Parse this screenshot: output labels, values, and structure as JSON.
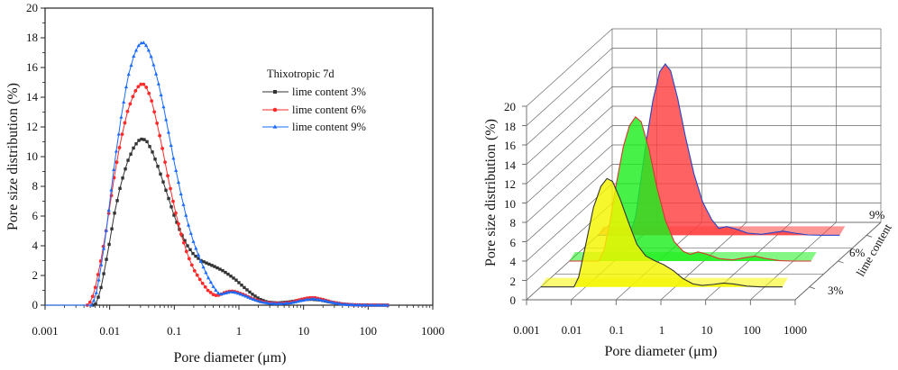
{
  "chart_data": [
    {
      "type": "line",
      "x_scale": "log",
      "xlabel": "Pore diameter (μm)",
      "ylabel": "Pore size distribution (%)",
      "xlim": [
        0.001,
        1000
      ],
      "ylim": [
        0,
        20
      ],
      "x_tick_labels": [
        "0.001",
        "0.01",
        "0.1",
        "1",
        "10",
        "100",
        "1000"
      ],
      "y_tick_labels": [
        "0",
        "2",
        "4",
        "6",
        "8",
        "10",
        "12",
        "14",
        "16",
        "18",
        "20"
      ],
      "legend_title": "Thixotropic 7d",
      "legend_position": "upper-center",
      "series": [
        {
          "name": "lime content 3%",
          "color": "#333333",
          "marker": "square",
          "points": [
            [
              0.001,
              0
            ],
            [
              0.0055,
              0
            ],
            [
              0.0062,
              0.1
            ],
            [
              0.0072,
              1.0
            ],
            [
              0.0085,
              2.6
            ],
            [
              0.01,
              4.3
            ],
            [
              0.012,
              6.3
            ],
            [
              0.015,
              8.2
            ],
            [
              0.019,
              9.7
            ],
            [
              0.024,
              10.7
            ],
            [
              0.029,
              11.15
            ],
            [
              0.033,
              11.2
            ],
            [
              0.038,
              11.0
            ],
            [
              0.045,
              10.4
            ],
            [
              0.055,
              9.4
            ],
            [
              0.065,
              8.5
            ],
            [
              0.08,
              7.3
            ],
            [
              0.1,
              6.0
            ],
            [
              0.125,
              4.9
            ],
            [
              0.16,
              4.0
            ],
            [
              0.2,
              3.4
            ],
            [
              0.26,
              3.0
            ],
            [
              0.33,
              2.8
            ],
            [
              0.42,
              2.6
            ],
            [
              0.55,
              2.35
            ],
            [
              0.7,
              2.05
            ],
            [
              0.9,
              1.7
            ],
            [
              1.2,
              1.2
            ],
            [
              1.6,
              0.75
            ],
            [
              2.1,
              0.4
            ],
            [
              2.8,
              0.2
            ],
            [
              4,
              0.15
            ],
            [
              6,
              0.22
            ],
            [
              9,
              0.35
            ],
            [
              13,
              0.4
            ],
            [
              18,
              0.35
            ],
            [
              25,
              0.22
            ],
            [
              40,
              0.08
            ],
            [
              60,
              0.02
            ],
            [
              100,
              0
            ],
            [
              200,
              0
            ]
          ]
        },
        {
          "name": "lime content 6%",
          "color": "#ff2a2a",
          "marker": "circle",
          "points": [
            [
              0.001,
              0
            ],
            [
              0.0045,
              0
            ],
            [
              0.0052,
              0.3
            ],
            [
              0.006,
              1.2
            ],
            [
              0.007,
              2.6
            ],
            [
              0.0085,
              4.6
            ],
            [
              0.01,
              6.6
            ],
            [
              0.012,
              8.9
            ],
            [
              0.015,
              11.2
            ],
            [
              0.019,
              13.1
            ],
            [
              0.024,
              14.3
            ],
            [
              0.029,
              14.85
            ],
            [
              0.033,
              14.9
            ],
            [
              0.038,
              14.6
            ],
            [
              0.045,
              13.7
            ],
            [
              0.055,
              12.1
            ],
            [
              0.065,
              10.6
            ],
            [
              0.08,
              8.6
            ],
            [
              0.1,
              6.6
            ],
            [
              0.125,
              4.9
            ],
            [
              0.16,
              3.4
            ],
            [
              0.2,
              2.4
            ],
            [
              0.26,
              1.6
            ],
            [
              0.33,
              1.0
            ],
            [
              0.42,
              0.65
            ],
            [
              0.5,
              0.68
            ],
            [
              0.6,
              0.85
            ],
            [
              0.75,
              0.95
            ],
            [
              0.9,
              0.9
            ],
            [
              1.2,
              0.7
            ],
            [
              1.6,
              0.45
            ],
            [
              2.2,
              0.25
            ],
            [
              3,
              0.15
            ],
            [
              4.5,
              0.12
            ],
            [
              6.5,
              0.2
            ],
            [
              9,
              0.38
            ],
            [
              12,
              0.5
            ],
            [
              15,
              0.5
            ],
            [
              20,
              0.38
            ],
            [
              28,
              0.2
            ],
            [
              40,
              0.08
            ],
            [
              60,
              0.02
            ],
            [
              100,
              0
            ],
            [
              200,
              0
            ]
          ]
        },
        {
          "name": "lime content 9%",
          "color": "#1a6bff",
          "marker": "triangle",
          "points": [
            [
              0.001,
              0
            ],
            [
              0.0052,
              0
            ],
            [
              0.006,
              0.5
            ],
            [
              0.007,
              2.0
            ],
            [
              0.0085,
              4.4
            ],
            [
              0.01,
              6.9
            ],
            [
              0.012,
              9.7
            ],
            [
              0.015,
              12.6
            ],
            [
              0.019,
              15.3
            ],
            [
              0.024,
              16.9
            ],
            [
              0.029,
              17.6
            ],
            [
              0.033,
              17.7
            ],
            [
              0.038,
              17.4
            ],
            [
              0.045,
              16.6
            ],
            [
              0.055,
              15.2
            ],
            [
              0.065,
              13.8
            ],
            [
              0.08,
              11.8
            ],
            [
              0.1,
              9.6
            ],
            [
              0.125,
              7.6
            ],
            [
              0.16,
              5.6
            ],
            [
              0.2,
              4.2
            ],
            [
              0.26,
              2.9
            ],
            [
              0.33,
              1.9
            ],
            [
              0.42,
              1.1
            ],
            [
              0.5,
              0.72
            ],
            [
              0.6,
              0.8
            ],
            [
              0.75,
              0.9
            ],
            [
              0.9,
              0.85
            ],
            [
              1.2,
              0.65
            ],
            [
              1.6,
              0.42
            ],
            [
              2.2,
              0.22
            ],
            [
              3,
              0.12
            ],
            [
              4.5,
              0.1
            ],
            [
              6.5,
              0.16
            ],
            [
              9,
              0.3
            ],
            [
              12,
              0.4
            ],
            [
              15,
              0.42
            ],
            [
              20,
              0.32
            ],
            [
              28,
              0.18
            ],
            [
              40,
              0.06
            ],
            [
              60,
              0.02
            ],
            [
              100,
              0
            ],
            [
              200,
              0
            ]
          ]
        }
      ]
    },
    {
      "type": "area",
      "projection": "3d-waterfall",
      "x_scale": "log",
      "xlabel": "Pore diameter (μm)",
      "ylabel": "Pore size distribution (%)",
      "zlabel": "lime content",
      "xlim": [
        0.001,
        1000
      ],
      "ylim": [
        0,
        20
      ],
      "x_tick_labels": [
        "0.001",
        "0.01",
        "0.1",
        "1",
        "10",
        "100",
        "1000"
      ],
      "y_tick_labels": [
        "0",
        "2",
        "4",
        "6",
        "8",
        "10",
        "12",
        "14",
        "16",
        "18",
        "20"
      ],
      "z_tick_labels": [
        "3%",
        "6%",
        "9%"
      ],
      "series": [
        {
          "name": "3%",
          "color": "#f5f500",
          "edge": "#333333",
          "points": [
            [
              0.001,
              0
            ],
            [
              0.0055,
              0
            ],
            [
              0.007,
              1.0
            ],
            [
              0.01,
              4.3
            ],
            [
              0.015,
              8.2
            ],
            [
              0.022,
              10.4
            ],
            [
              0.03,
              11.2
            ],
            [
              0.04,
              10.9
            ],
            [
              0.06,
              9.0
            ],
            [
              0.09,
              6.7
            ],
            [
              0.14,
              4.4
            ],
            [
              0.22,
              3.2
            ],
            [
              0.35,
              2.7
            ],
            [
              0.55,
              2.3
            ],
            [
              0.9,
              1.7
            ],
            [
              1.5,
              0.85
            ],
            [
              2.5,
              0.3
            ],
            [
              4,
              0.15
            ],
            [
              7,
              0.25
            ],
            [
              12,
              0.4
            ],
            [
              20,
              0.3
            ],
            [
              40,
              0.08
            ],
            [
              80,
              0
            ],
            [
              250,
              0
            ]
          ]
        },
        {
          "name": "6%",
          "color": "#1eee1e",
          "edge": "#dd3333",
          "points": [
            [
              0.001,
              0
            ],
            [
              0.0045,
              0
            ],
            [
              0.006,
              1.2
            ],
            [
              0.008,
              4.0
            ],
            [
              0.011,
              7.8
            ],
            [
              0.016,
              11.8
            ],
            [
              0.022,
              14.0
            ],
            [
              0.03,
              14.9
            ],
            [
              0.04,
              14.4
            ],
            [
              0.06,
              11.6
            ],
            [
              0.09,
              7.6
            ],
            [
              0.14,
              4.2
            ],
            [
              0.22,
              2.0
            ],
            [
              0.35,
              1.0
            ],
            [
              0.5,
              0.7
            ],
            [
              0.75,
              0.95
            ],
            [
              1.2,
              0.7
            ],
            [
              2.2,
              0.25
            ],
            [
              4.5,
              0.12
            ],
            [
              9,
              0.38
            ],
            [
              14,
              0.5
            ],
            [
              25,
              0.25
            ],
            [
              50,
              0.04
            ],
            [
              100,
              0
            ],
            [
              250,
              0
            ]
          ]
        },
        {
          "name": "9%",
          "color": "#ff4040",
          "edge": "#2244cc",
          "points": [
            [
              0.001,
              0
            ],
            [
              0.0052,
              0
            ],
            [
              0.007,
              2.0
            ],
            [
              0.009,
              5.6
            ],
            [
              0.012,
              9.7
            ],
            [
              0.017,
              14.0
            ],
            [
              0.024,
              16.9
            ],
            [
              0.032,
              17.7
            ],
            [
              0.042,
              17.0
            ],
            [
              0.06,
              14.2
            ],
            [
              0.09,
              10.2
            ],
            [
              0.14,
              6.3
            ],
            [
              0.22,
              3.4
            ],
            [
              0.35,
              1.6
            ],
            [
              0.5,
              0.72
            ],
            [
              0.75,
              0.9
            ],
            [
              1.2,
              0.65
            ],
            [
              2.2,
              0.22
            ],
            [
              4.5,
              0.1
            ],
            [
              9,
              0.3
            ],
            [
              14,
              0.42
            ],
            [
              25,
              0.22
            ],
            [
              50,
              0.03
            ],
            [
              100,
              0
            ],
            [
              250,
              0
            ]
          ]
        }
      ]
    }
  ]
}
